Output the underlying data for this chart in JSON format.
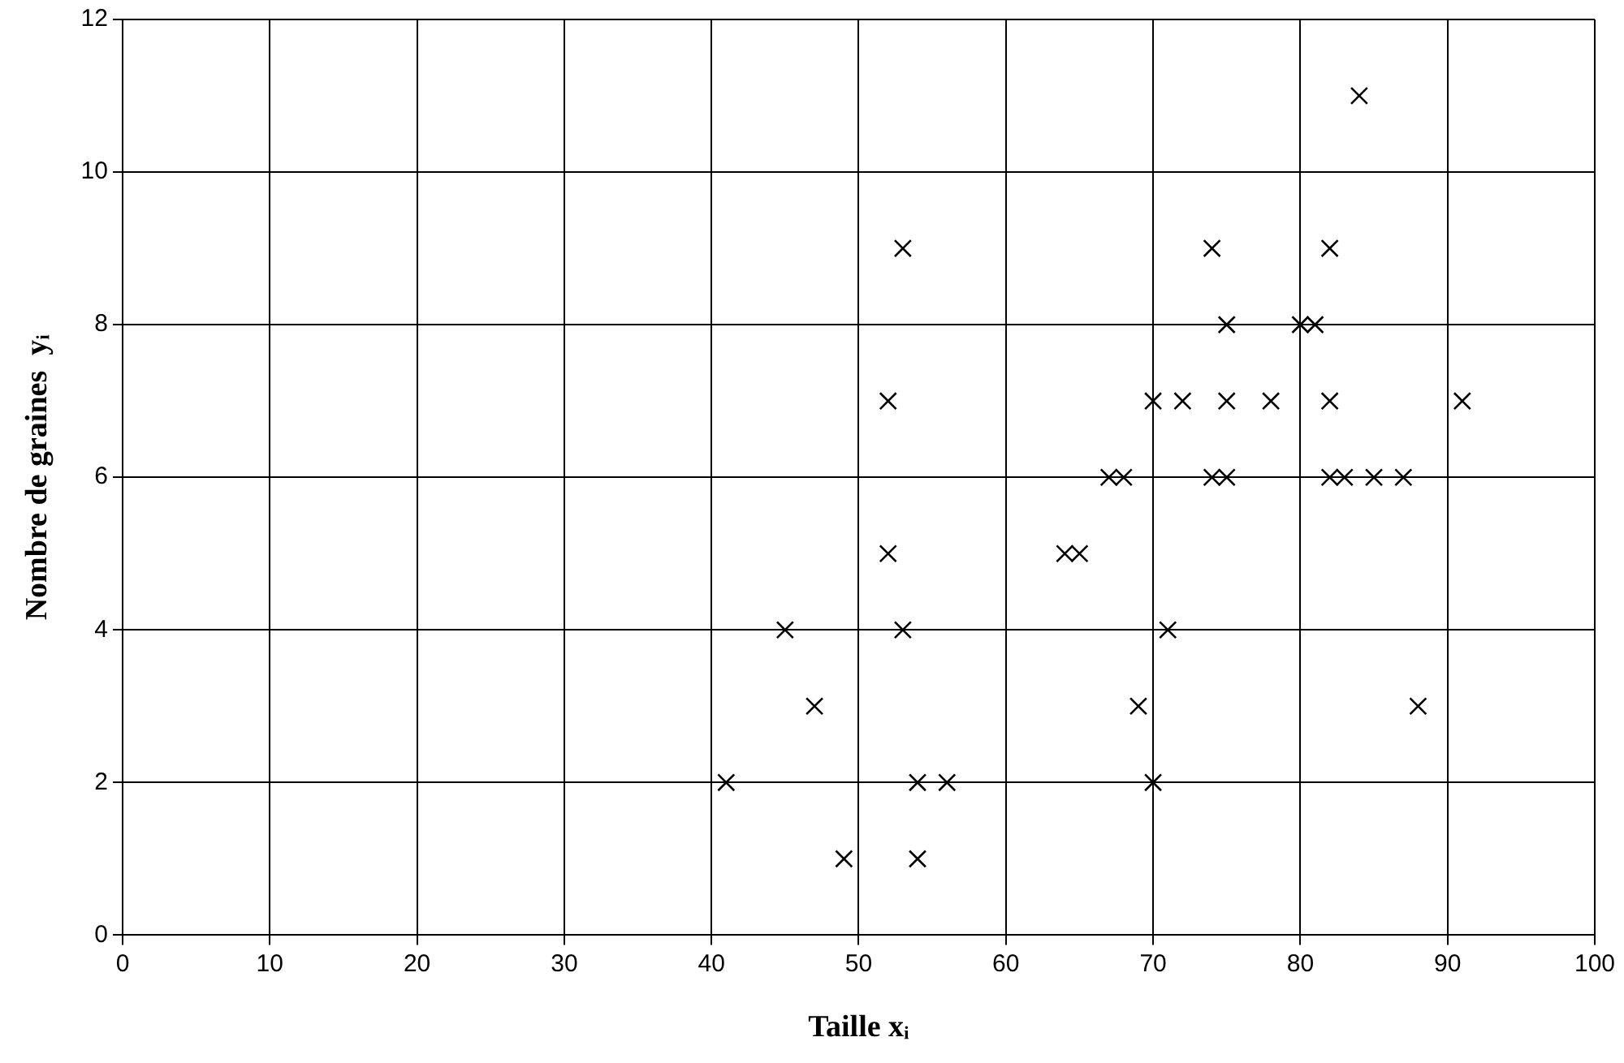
{
  "chart_data": {
    "type": "scatter",
    "xlabel": "Taille xᵢ",
    "ylabel": "Nombre de graines  yᵢ",
    "x": [
      41,
      45,
      47,
      49,
      52,
      52,
      53,
      53,
      54,
      54,
      56,
      64,
      65,
      67,
      68,
      69,
      70,
      70,
      71,
      72,
      74,
      74,
      75,
      75,
      75,
      78,
      80,
      81,
      82,
      82,
      82,
      83,
      84,
      85,
      87,
      88,
      91
    ],
    "series": [
      {
        "color": "#000000",
        "values": [
          2,
          4,
          3,
          1,
          7,
          5,
          9,
          4,
          2,
          1,
          2,
          5,
          5,
          6,
          6,
          3,
          7,
          2,
          4,
          7,
          9,
          6,
          8,
          7,
          6,
          7,
          8,
          8,
          9,
          7,
          6,
          6,
          11,
          6,
          6,
          3,
          7
        ]
      }
    ],
    "xlim": [
      0,
      100
    ],
    "xticks": [
      0,
      10,
      20,
      30,
      40,
      50,
      60,
      70,
      80,
      90,
      100
    ],
    "ylim": [
      0,
      12
    ],
    "yticks": [
      0,
      2,
      4,
      6,
      8,
      10,
      12
    ],
    "grid": true,
    "legend": false,
    "marker": "cross"
  }
}
